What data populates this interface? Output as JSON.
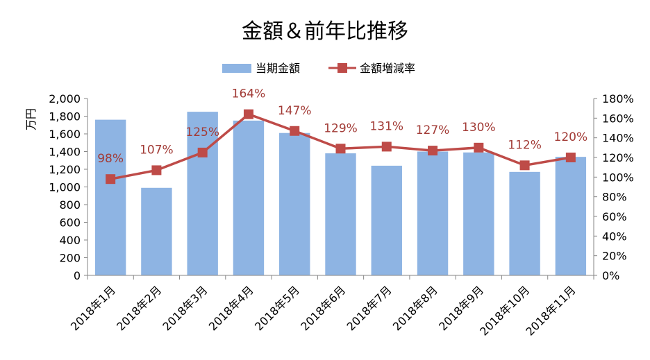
{
  "chart_data": {
    "type": "bar+line",
    "title": "金額＆前年比推移",
    "categories": [
      "2018年1月",
      "2018年2月",
      "2018年3月",
      "2018年4月",
      "2018年5月",
      "2018年6月",
      "2018年7月",
      "2018年8月",
      "2018年9月",
      "2018年10月",
      "2018年11月"
    ],
    "series": [
      {
        "name": "当期金額",
        "type": "bar",
        "axis": "left",
        "color": "#8eb4e3",
        "values": [
          1760,
          990,
          1850,
          1750,
          1610,
          1380,
          1240,
          1400,
          1390,
          1170,
          1340
        ]
      },
      {
        "name": "金額増減率",
        "type": "line",
        "axis": "right",
        "color": "#be4b48",
        "values": [
          98,
          107,
          125,
          164,
          147,
          129,
          131,
          127,
          130,
          112,
          120
        ],
        "labels": [
          "98%",
          "107%",
          "125%",
          "164%",
          "147%",
          "129%",
          "131%",
          "127%",
          "130%",
          "112%",
          "120%"
        ]
      }
    ],
    "ylabel": "万円",
    "y_left": {
      "min": 0,
      "max": 2000,
      "step": 200,
      "tick_labels": [
        "0",
        "200",
        "400",
        "600",
        "800",
        "1,000",
        "1,200",
        "1,400",
        "1,600",
        "1,800",
        "2,000"
      ]
    },
    "y_right": {
      "min": 0,
      "max": 180,
      "step": 20,
      "tick_labels": [
        "0%",
        "20%",
        "40%",
        "60%",
        "80%",
        "100%",
        "120%",
        "140%",
        "160%",
        "180%"
      ]
    },
    "grid": false,
    "legend_position": "top-center"
  }
}
